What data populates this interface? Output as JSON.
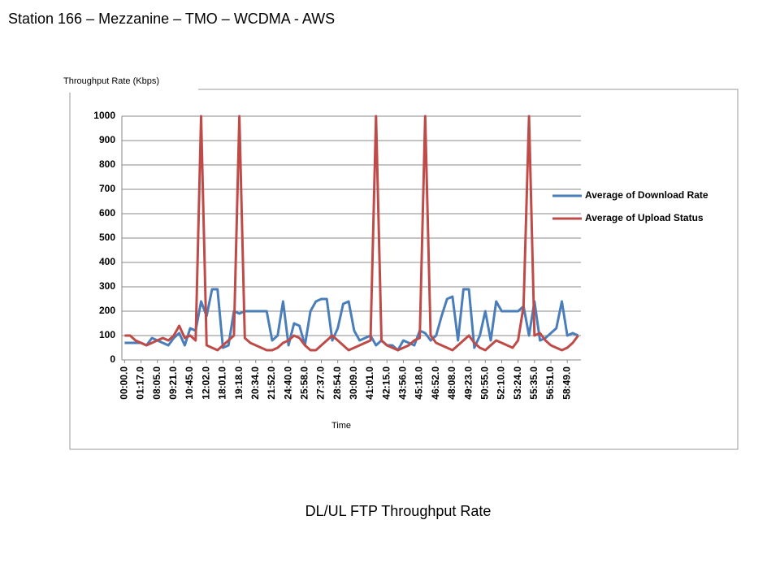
{
  "heading": "Station 166 – Mezzanine – TMO – WCDMA - AWS",
  "caption": "DL/UL FTP Throughput Rate",
  "chart_data": {
    "type": "line",
    "y_label": "Throughput Rate (Kbps)",
    "x_label": "Time",
    "categories": [
      "00:00.0",
      null,
      null,
      "01:17.0",
      null,
      null,
      "08:05.0",
      null,
      null,
      "09:21.0",
      null,
      null,
      "10:45.0",
      null,
      null,
      "12:02.0",
      null,
      null,
      "18:01.0",
      null,
      null,
      "19:18.0",
      null,
      null,
      "20:34.0",
      null,
      null,
      "21:52.0",
      null,
      null,
      "24:40.0",
      null,
      null,
      "25:58.0",
      null,
      null,
      "27:37.0",
      null,
      null,
      "28:54.0",
      null,
      null,
      "30:09.0",
      null,
      null,
      "41:01.0",
      null,
      null,
      "42:15.0",
      null,
      null,
      "43:56.0",
      null,
      null,
      "45:18.0",
      null,
      null,
      "46:52.0",
      null,
      null,
      "48:08.0",
      null,
      null,
      "49:23.0",
      null,
      null,
      "50:55.0",
      null,
      null,
      "52:10.0",
      null,
      null,
      "53:24.0",
      null,
      null,
      "55:35.0",
      null,
      null,
      "56:51.0",
      null,
      null,
      "58:49.0",
      null,
      null
    ],
    "series": [
      {
        "name": "Average of Download Rate",
        "color": "#4a7ebb",
        "values": [
          70,
          70,
          70,
          70,
          60,
          90,
          80,
          70,
          60,
          90,
          110,
          60,
          130,
          120,
          240,
          180,
          290,
          290,
          50,
          60,
          200,
          190,
          200,
          200,
          200,
          200,
          200,
          80,
          100,
          240,
          60,
          150,
          140,
          60,
          200,
          240,
          250,
          250,
          80,
          130,
          230,
          240,
          120,
          80,
          90,
          100,
          60,
          80,
          60,
          60,
          40,
          80,
          70,
          60,
          120,
          110,
          80,
          100,
          180,
          250,
          260,
          80,
          290,
          290,
          50,
          100,
          200,
          80,
          240,
          200,
          200,
          200,
          200,
          220,
          100,
          240,
          80,
          90,
          110,
          130,
          240,
          100,
          110,
          100
        ]
      },
      {
        "name": "Average of Upload Status",
        "color": "#be4b48",
        "values": [
          100,
          100,
          80,
          70,
          60,
          70,
          80,
          90,
          80,
          100,
          140,
          90,
          100,
          80,
          1000,
          60,
          50,
          40,
          60,
          80,
          100,
          1000,
          90,
          70,
          60,
          50,
          40,
          40,
          50,
          70,
          80,
          100,
          90,
          60,
          40,
          40,
          60,
          80,
          100,
          80,
          60,
          40,
          50,
          60,
          70,
          80,
          1000,
          80,
          60,
          50,
          40,
          50,
          60,
          80,
          90,
          1000,
          100,
          70,
          60,
          50,
          40,
          60,
          80,
          100,
          70,
          50,
          40,
          60,
          80,
          70,
          60,
          50,
          80,
          220,
          1000,
          100,
          110,
          80,
          60,
          50,
          40,
          50,
          70,
          100
        ]
      }
    ],
    "ylim": [
      0,
      1000
    ],
    "yticks": [
      0,
      100,
      200,
      300,
      400,
      500,
      600,
      700,
      800,
      900,
      1000
    ],
    "grid": true,
    "legend": "right"
  }
}
